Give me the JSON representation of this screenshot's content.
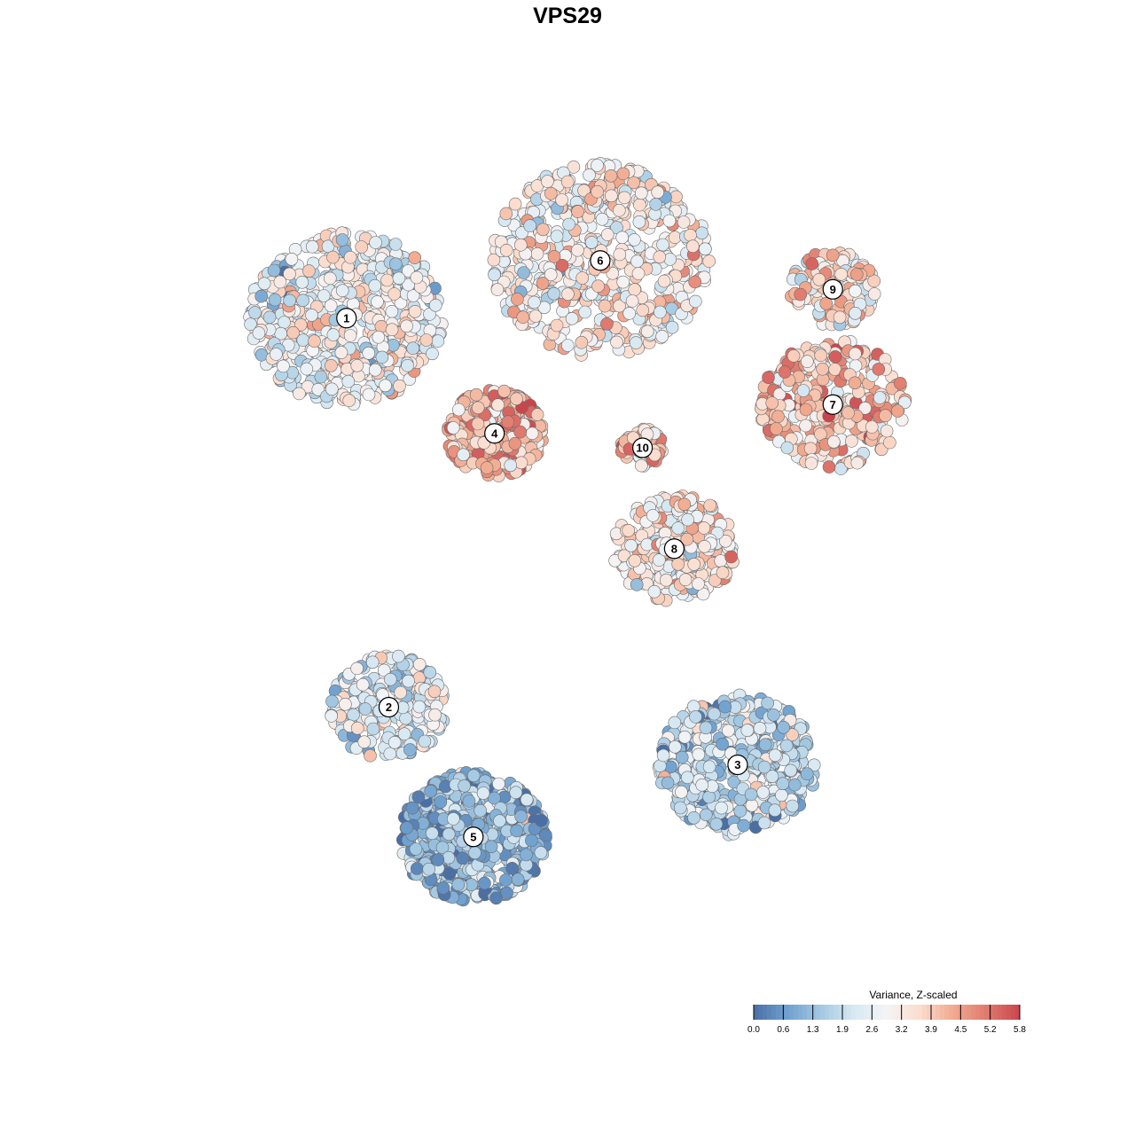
{
  "chart_data": {
    "type": "scatter",
    "title": "VPS29",
    "xlabel": "",
    "ylabel": "",
    "colorbar": {
      "title": "Variance, Z-scaled",
      "min": 0.0,
      "max": 5.8,
      "ticks": [
        "0.0",
        "0.6",
        "1.3",
        "1.9",
        "2.6",
        "3.2",
        "3.9",
        "4.5",
        "5.2",
        "5.8"
      ],
      "colors": [
        "#4a6fa5",
        "#6fa0cf",
        "#a3c8e2",
        "#d7e8f2",
        "#f4f4f6",
        "#fbdccd",
        "#f1aa8f",
        "#e07a6e",
        "#c9454e"
      ],
      "placement": "bottom-right"
    },
    "clusters": [
      {
        "label": "1",
        "x": -22,
        "y": 18,
        "mean_value": 2.7,
        "spread": 8.0,
        "n": 620
      },
      {
        "label": "2",
        "x": -18,
        "y": -9,
        "mean_value": 2.3,
        "spread": 4.8,
        "n": 260
      },
      {
        "label": "3",
        "x": 15,
        "y": -13,
        "mean_value": 1.9,
        "spread": 6.5,
        "n": 480
      },
      {
        "label": "4",
        "x": -8,
        "y": 10,
        "mean_value": 4.2,
        "spread": 4.0,
        "n": 300
      },
      {
        "label": "5",
        "x": -10,
        "y": -18,
        "mean_value": 1.2,
        "spread": 6.0,
        "n": 620
      },
      {
        "label": "6",
        "x": 2,
        "y": 22,
        "mean_value": 3.1,
        "spread": 9.0,
        "n": 580
      },
      {
        "label": "7",
        "x": 24,
        "y": 12,
        "mean_value": 3.9,
        "spread": 6.0,
        "n": 300
      },
      {
        "label": "8",
        "x": 9,
        "y": 2,
        "mean_value": 3.2,
        "spread": 5.0,
        "n": 280
      },
      {
        "label": "9",
        "x": 24,
        "y": 20,
        "mean_value": 3.4,
        "spread": 3.5,
        "n": 140
      },
      {
        "label": "10",
        "x": 6,
        "y": 9,
        "mean_value": 4.1,
        "spread": 1.8,
        "n": 70
      }
    ],
    "xlim": [
      -38,
      40
    ],
    "ylim": [
      -27,
      29
    ],
    "grid": false
  }
}
